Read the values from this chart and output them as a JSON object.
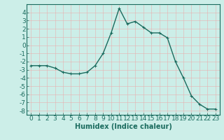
{
  "x": [
    0,
    1,
    2,
    3,
    4,
    5,
    6,
    7,
    8,
    9,
    10,
    11,
    12,
    13,
    14,
    15,
    16,
    17,
    18,
    19,
    20,
    21,
    22,
    23
  ],
  "y": [
    -2.5,
    -2.5,
    -2.5,
    -2.8,
    -3.3,
    -3.5,
    -3.5,
    -3.3,
    -2.5,
    -1.0,
    1.5,
    4.5,
    2.6,
    2.9,
    2.2,
    1.5,
    1.5,
    0.9,
    -2.0,
    -4.0,
    -6.2,
    -7.2,
    -7.8,
    -7.8
  ],
  "line_color": "#1a6b5e",
  "marker": "+",
  "marker_size": 3,
  "linewidth": 1.0,
  "xlabel": "Humidex (Indice chaleur)",
  "xlim": [
    -0.5,
    23.5
  ],
  "ylim": [
    -8.5,
    5.0
  ],
  "yticks": [
    4,
    3,
    2,
    1,
    0,
    -1,
    -2,
    -3,
    -4,
    -5,
    -6,
    -7,
    -8
  ],
  "xticks": [
    0,
    1,
    2,
    3,
    4,
    5,
    6,
    7,
    8,
    9,
    10,
    11,
    12,
    13,
    14,
    15,
    16,
    17,
    18,
    19,
    20,
    21,
    22,
    23
  ],
  "background_color": "#cceee8",
  "grid_color": "#e8b0b0",
  "tick_color": "#1a6b5e",
  "label_color": "#1a6b5e",
  "font_size": 6.5
}
